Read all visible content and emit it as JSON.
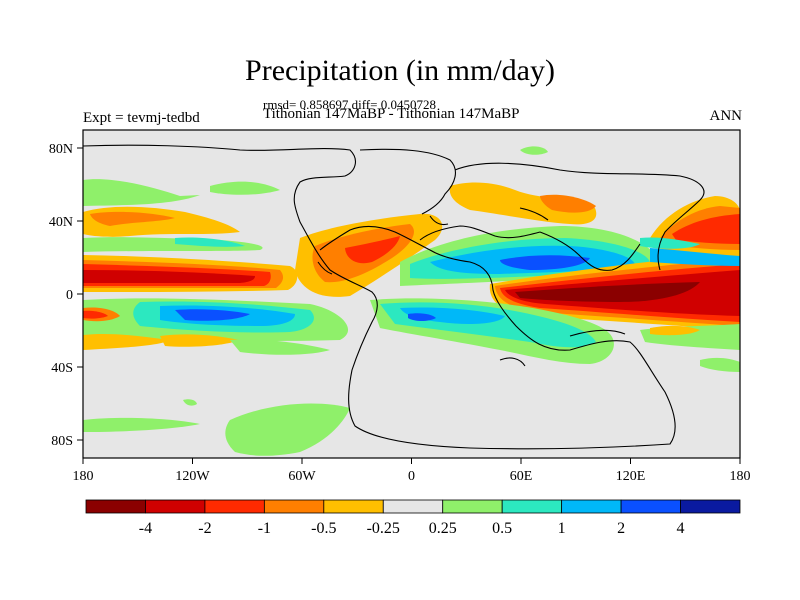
{
  "figure": {
    "title": "Precipitation (in mm/day)",
    "stats": "rmsd= 0.858697 diff= 0.0450728",
    "subtitle": "Tithonian 147MaBP - Tithonian 147MaBP",
    "left_label": "Expt = tevmj-tedbd",
    "right_label": "ANN"
  },
  "axes": {
    "lon_ticks": [
      "180",
      "120W",
      "60W",
      "0",
      "60E",
      "120E",
      "180"
    ],
    "lat_ticks": [
      "80N",
      "40N",
      "0",
      "40S",
      "80S"
    ]
  },
  "colorbar": {
    "colors": [
      "#8b0000",
      "#d00000",
      "#ff2a00",
      "#ff7f00",
      "#ffbf00",
      "#e6e6e6",
      "#8ff06a",
      "#2ce8c0",
      "#00b8f8",
      "#0a50ff",
      "#0a1aa0"
    ],
    "labels": [
      "-4",
      "-2",
      "-1",
      "-0.5",
      "-0.25",
      "0.25",
      "0.5",
      "1",
      "2",
      "4"
    ]
  },
  "colors": {
    "background_field": "#e6e6e6",
    "frame": "#000000",
    "coastline": "#000000"
  }
}
